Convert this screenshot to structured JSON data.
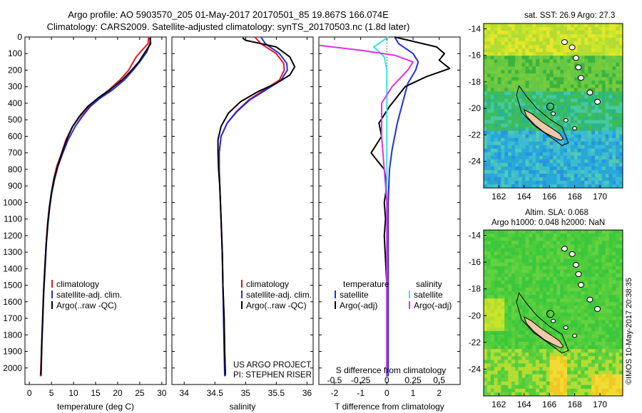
{
  "header": {
    "line1": "Argo profile: AO 5903570_205 01-May-2017 20170501_85 19.867S 166.074E",
    "line2": "Climatology: CARS2009. Satellite-adjusted climatology: synTS_20170503.nc (1.8d later)"
  },
  "watermark": "©IMOS 10-May-2017 20:38:35",
  "colors": {
    "climatology": "#e8161b",
    "satellite": "#1f2de8",
    "argo": "#000000",
    "sat_salinity": "#2fe6e6",
    "argo_salinity_diff": "#e62ee6"
  },
  "chart_data": [
    {
      "type": "line",
      "name": "temperature-profile",
      "xlabel": "temperature (deg C)",
      "xlim": [
        -1,
        31
      ],
      "xticks": [
        0,
        5,
        10,
        15,
        20,
        25,
        30
      ],
      "ylim": [
        2100,
        0
      ],
      "yticks": [
        0,
        100,
        200,
        300,
        400,
        500,
        600,
        700,
        800,
        900,
        1000,
        1100,
        1200,
        1300,
        1400,
        1500,
        1600,
        1700,
        1800,
        1900,
        2000
      ],
      "legend": [
        "climatology",
        "satellite-adj. clim.",
        "Argo(..raw -QC)"
      ],
      "series": [
        {
          "name": "climatology",
          "color": "#e8161b",
          "points": [
            [
              27.0,
              0
            ],
            [
              26.9,
              40
            ],
            [
              25.5,
              80
            ],
            [
              24.2,
              120
            ],
            [
              22.5,
              200
            ],
            [
              20.5,
              260
            ],
            [
              18.0,
              320
            ],
            [
              15.5,
              370
            ],
            [
              13.5,
              420
            ],
            [
              11.5,
              480
            ],
            [
              9.8,
              540
            ],
            [
              8.3,
              620
            ],
            [
              7.3,
              700
            ],
            [
              6.2,
              780
            ],
            [
              5.5,
              860
            ],
            [
              5.0,
              940
            ],
            [
              4.5,
              1030
            ],
            [
              4.1,
              1130
            ],
            [
              3.8,
              1250
            ],
            [
              3.5,
              1400
            ],
            [
              3.2,
              1550
            ],
            [
              3.0,
              1700
            ],
            [
              2.8,
              1850
            ],
            [
              2.6,
              2000
            ],
            [
              2.5,
              2050
            ]
          ]
        },
        {
          "name": "satellite-adj. clim.",
          "color": "#1f2de8",
          "points": [
            [
              27.5,
              0
            ],
            [
              27.3,
              40
            ],
            [
              26.6,
              90
            ],
            [
              25.0,
              150
            ],
            [
              23.5,
              200
            ],
            [
              21.5,
              260
            ],
            [
              18.8,
              320
            ],
            [
              16.0,
              370
            ],
            [
              13.8,
              420
            ],
            [
              12.0,
              480
            ],
            [
              10.4,
              540
            ],
            [
              8.8,
              620
            ],
            [
              7.6,
              700
            ],
            [
              6.5,
              780
            ],
            [
              5.7,
              860
            ],
            [
              5.1,
              940
            ],
            [
              4.6,
              1030
            ],
            [
              4.2,
              1130
            ],
            [
              3.85,
              1250
            ],
            [
              3.55,
              1400
            ],
            [
              3.25,
              1550
            ],
            [
              3.05,
              1700
            ],
            [
              2.85,
              1850
            ],
            [
              2.7,
              2000
            ],
            [
              2.65,
              2050
            ]
          ]
        },
        {
          "name": "Argo(..raw -QC)",
          "color": "#000000",
          "points": [
            [
              27.3,
              5
            ],
            [
              27.5,
              40
            ],
            [
              27.0,
              60
            ],
            [
              26.0,
              100
            ],
            [
              24.8,
              150
            ],
            [
              23.2,
              200
            ],
            [
              21.0,
              260
            ],
            [
              18.2,
              320
            ],
            [
              15.5,
              370
            ],
            [
              13.2,
              420
            ],
            [
              11.3,
              480
            ],
            [
              9.8,
              540
            ],
            [
              8.6,
              610
            ],
            [
              7.5,
              690
            ],
            [
              6.4,
              780
            ],
            [
              5.6,
              860
            ],
            [
              5.0,
              940
            ],
            [
              4.55,
              1030
            ],
            [
              4.15,
              1130
            ],
            [
              3.8,
              1250
            ],
            [
              3.5,
              1400
            ],
            [
              3.2,
              1550
            ],
            [
              3.0,
              1700
            ],
            [
              2.8,
              1850
            ],
            [
              2.65,
              2000
            ],
            [
              2.6,
              2040
            ]
          ]
        }
      ]
    },
    {
      "type": "line",
      "name": "salinity-profile",
      "xlabel": "salinity",
      "xlim": [
        33.8,
        36.1
      ],
      "xticks": [
        34,
        34.5,
        35,
        35.5,
        36
      ],
      "ylim": [
        2100,
        0
      ],
      "legend": [
        "climatology",
        "satellite-adj. clim.",
        "Argo(..raw -QC)"
      ],
      "annotation": [
        "US ARGO PROJECT",
        "PI: STEPHEN RISER"
      ],
      "series": [
        {
          "name": "climatology",
          "color": "#e8161b",
          "points": [
            [
              35.15,
              0
            ],
            [
              35.25,
              40
            ],
            [
              35.5,
              100
            ],
            [
              35.62,
              160
            ],
            [
              35.63,
              200
            ],
            [
              35.55,
              260
            ],
            [
              35.3,
              320
            ],
            [
              35.05,
              380
            ],
            [
              34.85,
              450
            ],
            [
              34.7,
              520
            ],
            [
              34.6,
              600
            ],
            [
              34.57,
              700
            ],
            [
              34.57,
              800
            ],
            [
              34.58,
              900
            ],
            [
              34.6,
              1100
            ],
            [
              34.62,
              1300
            ],
            [
              34.63,
              1500
            ],
            [
              34.65,
              1700
            ],
            [
              34.66,
              1900
            ],
            [
              34.67,
              2050
            ]
          ]
        },
        {
          "name": "satellite-adj. clim.",
          "color": "#1f2de8",
          "points": [
            [
              35.25,
              0
            ],
            [
              35.32,
              40
            ],
            [
              35.55,
              100
            ],
            [
              35.67,
              160
            ],
            [
              35.68,
              200
            ],
            [
              35.58,
              260
            ],
            [
              35.33,
              320
            ],
            [
              35.07,
              380
            ],
            [
              34.86,
              450
            ],
            [
              34.7,
              520
            ],
            [
              34.6,
              600
            ],
            [
              34.57,
              700
            ],
            [
              34.57,
              800
            ],
            [
              34.58,
              900
            ],
            [
              34.6,
              1100
            ],
            [
              34.62,
              1300
            ],
            [
              34.63,
              1500
            ],
            [
              34.64,
              1700
            ],
            [
              34.65,
              1900
            ],
            [
              34.66,
              2050
            ]
          ]
        },
        {
          "name": "Argo(..raw -QC)",
          "color": "#000000",
          "points": [
            [
              34.95,
              5
            ],
            [
              35.0,
              20
            ],
            [
              35.5,
              60
            ],
            [
              35.72,
              120
            ],
            [
              35.8,
              180
            ],
            [
              35.72,
              230
            ],
            [
              35.5,
              280
            ],
            [
              35.2,
              330
            ],
            [
              34.92,
              390
            ],
            [
              34.72,
              460
            ],
            [
              34.6,
              540
            ],
            [
              34.55,
              620
            ],
            [
              34.55,
              700
            ],
            [
              34.56,
              800
            ],
            [
              34.58,
              900
            ],
            [
              34.6,
              1100
            ],
            [
              34.62,
              1300
            ],
            [
              34.63,
              1500
            ],
            [
              34.65,
              1700
            ],
            [
              34.66,
              1900
            ],
            [
              34.67,
              2040
            ]
          ]
        }
      ]
    },
    {
      "type": "line",
      "name": "difference-profile",
      "xlabel": "T difference from climatology",
      "xlabel_top": "S difference from climatology",
      "xlim": [
        -2.6,
        2.8
      ],
      "xticks": [
        -2,
        -1,
        0,
        1,
        2
      ],
      "xticks_top": [
        "-0.5",
        "-0.25",
        "0",
        "0.25",
        "0.5"
      ],
      "ylim": [
        2100,
        0
      ],
      "legend": {
        "temperature": "temperature",
        "salinity": "salinity",
        "entries": [
          [
            "satellite",
            "Argo(-adj)"
          ],
          [
            "satellite",
            "Argo(-adj)"
          ]
        ]
      },
      "series": [
        {
          "name": "temperature satellite",
          "color": "#1f2de8",
          "points": [
            [
              0.3,
              0
            ],
            [
              0.45,
              40
            ],
            [
              1.0,
              100
            ],
            [
              1.2,
              150
            ],
            [
              1.1,
              200
            ],
            [
              0.8,
              280
            ],
            [
              0.6,
              400
            ],
            [
              0.4,
              520
            ],
            [
              0.2,
              680
            ],
            [
              0.1,
              800
            ],
            [
              0.05,
              1000
            ],
            [
              0.05,
              1500
            ],
            [
              0.05,
              2050
            ]
          ]
        },
        {
          "name": "temperature Argo(-adj)",
          "color": "#000000",
          "points": [
            [
              0.3,
              0
            ],
            [
              1.9,
              60
            ],
            [
              2.2,
              100
            ],
            [
              2.0,
              140
            ],
            [
              2.4,
              190
            ],
            [
              1.5,
              240
            ],
            [
              0.7,
              300
            ],
            [
              0.1,
              420
            ],
            [
              -0.3,
              520
            ],
            [
              -0.2,
              600
            ],
            [
              -0.6,
              700
            ],
            [
              -0.3,
              760
            ],
            [
              -0.1,
              800
            ],
            [
              0.0,
              900
            ],
            [
              -0.1,
              1000
            ],
            [
              -0.05,
              1100
            ],
            [
              -0.1,
              1200
            ],
            [
              0.0,
              1500
            ],
            [
              0.0,
              2050
            ]
          ]
        },
        {
          "name": "salinity satellite",
          "color": "#2fe6e6",
          "points": [
            [
              0.05,
              0
            ],
            [
              -0.5,
              60
            ],
            [
              -0.1,
              120
            ],
            [
              0.0,
              200
            ],
            [
              0.0,
              400
            ],
            [
              0.0,
              700
            ],
            [
              0.0,
              1000
            ],
            [
              0.0,
              1500
            ],
            [
              0.0,
              2050
            ]
          ]
        },
        {
          "name": "salinity Argo(-adj)",
          "color": "#e62ee6",
          "points": [
            [
              -2.6,
              50
            ],
            [
              -1.0,
              80
            ],
            [
              0.3,
              110
            ],
            [
              1.0,
              150
            ],
            [
              0.8,
              200
            ],
            [
              0.2,
              300
            ],
            [
              -0.2,
              400
            ],
            [
              -0.2,
              600
            ],
            [
              -0.1,
              800
            ],
            [
              0.0,
              1000
            ],
            [
              0.0,
              1500
            ],
            [
              0.0,
              2050
            ]
          ]
        }
      ]
    },
    {
      "type": "heatmap",
      "name": "sst-map",
      "title": "sat. SST: 26.9 Argo: 27.3",
      "xticks": [
        162,
        164,
        166,
        168,
        170
      ],
      "yticks": [
        -14,
        -16,
        -18,
        -20,
        -22,
        -24
      ],
      "xlim": [
        160.8,
        171.8
      ],
      "ylim": [
        -26,
        -13.6
      ]
    },
    {
      "type": "heatmap",
      "name": "sla-map",
      "title": "Altim. SLA: 0.068",
      "subtitle": "Argo h1000: 0.048 h2000: NaN",
      "xticks": [
        162,
        164,
        166,
        168,
        170
      ],
      "yticks": [
        -14,
        -16,
        -18,
        -20,
        -22,
        -24
      ],
      "xlim": [
        160.8,
        171.8
      ],
      "ylim": [
        -26,
        -13.6
      ]
    }
  ]
}
